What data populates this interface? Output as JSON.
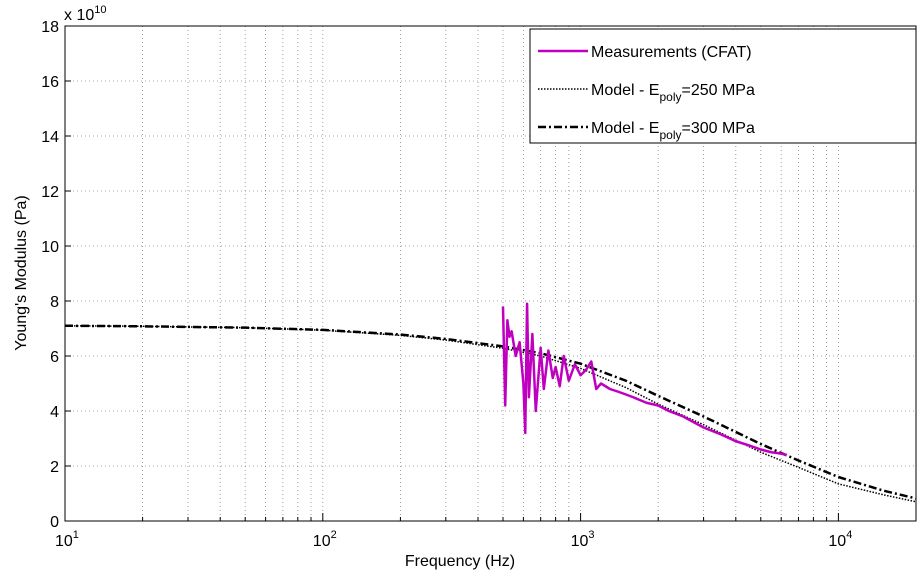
{
  "chart_data": {
    "type": "line",
    "x_label": "Frequency (Hz)",
    "y_label": "Young's Modulus (Pa)",
    "y_multiplier": {
      "base": "x 10",
      "exponent": "10"
    },
    "x_scale": "log",
    "grid": true,
    "legend": "top-right",
    "xlim": [
      10,
      20000
    ],
    "ylim": [
      0,
      18
    ],
    "xticks": [
      {
        "value": 10,
        "label": "10",
        "exponent": "1"
      },
      {
        "value": 100,
        "label": "10",
        "exponent": "2"
      },
      {
        "value": 1000,
        "label": "10",
        "exponent": "3"
      },
      {
        "value": 10000,
        "label": "10",
        "exponent": "4"
      }
    ],
    "xminorticks": [
      20,
      30,
      40,
      50,
      60,
      70,
      80,
      90,
      200,
      300,
      400,
      500,
      600,
      700,
      800,
      900,
      2000,
      3000,
      4000,
      5000,
      6000,
      7000,
      8000,
      9000,
      20000
    ],
    "yticks": [
      0,
      2,
      4,
      6,
      8,
      10,
      12,
      14,
      16,
      18
    ],
    "series": [
      {
        "name": "Measurements (CFAT)",
        "color": "#c000c0",
        "style": "solid",
        "x": [
          500,
          510,
          520,
          530,
          540,
          560,
          580,
          600,
          610,
          620,
          630,
          650,
          670,
          700,
          720,
          750,
          780,
          800,
          830,
          860,
          900,
          950,
          1000,
          1050,
          1100,
          1150,
          1200,
          1300,
          1400,
          1500,
          1600,
          1800,
          2000,
          2200,
          2500,
          2800,
          3000,
          3500,
          4000,
          4500,
          5000,
          5500,
          6000,
          6300
        ],
        "values": [
          7.8,
          4.2,
          7.3,
          6.7,
          6.9,
          6.0,
          6.5,
          5.0,
          3.2,
          7.9,
          4.5,
          6.8,
          4.0,
          6.3,
          4.8,
          6.2,
          5.2,
          5.6,
          4.9,
          6.0,
          5.1,
          5.7,
          5.3,
          5.5,
          5.8,
          4.8,
          5.0,
          4.8,
          4.7,
          4.6,
          4.5,
          4.3,
          4.2,
          4.0,
          3.8,
          3.55,
          3.4,
          3.15,
          2.9,
          2.75,
          2.6,
          2.5,
          2.45,
          2.4
        ]
      },
      {
        "name": "Model - E",
        "name_subscript": "poly",
        "name_end": "=250 MPa",
        "color": "#000000",
        "style": "dotted",
        "x": [
          10,
          20,
          50,
          100,
          200,
          300,
          500,
          700,
          1000,
          1500,
          2000,
          3000,
          5000,
          7000,
          10000,
          15000,
          20000
        ],
        "values": [
          7.1,
          7.08,
          7.03,
          6.94,
          6.75,
          6.58,
          6.28,
          6.0,
          5.55,
          4.85,
          4.25,
          3.5,
          2.5,
          1.95,
          1.35,
          0.95,
          0.7
        ]
      },
      {
        "name": "Model - E",
        "name_subscript": "poly",
        "name_end": "=300 MPa",
        "color": "#000000",
        "style": "dashdot",
        "x": [
          10,
          20,
          50,
          100,
          200,
          300,
          500,
          700,
          1000,
          1500,
          2000,
          3000,
          5000,
          7000,
          10000,
          15000,
          20000
        ],
        "values": [
          7.1,
          7.08,
          7.03,
          6.95,
          6.78,
          6.62,
          6.35,
          6.1,
          5.72,
          5.1,
          4.55,
          3.8,
          2.8,
          2.2,
          1.6,
          1.1,
          0.82
        ]
      }
    ]
  }
}
